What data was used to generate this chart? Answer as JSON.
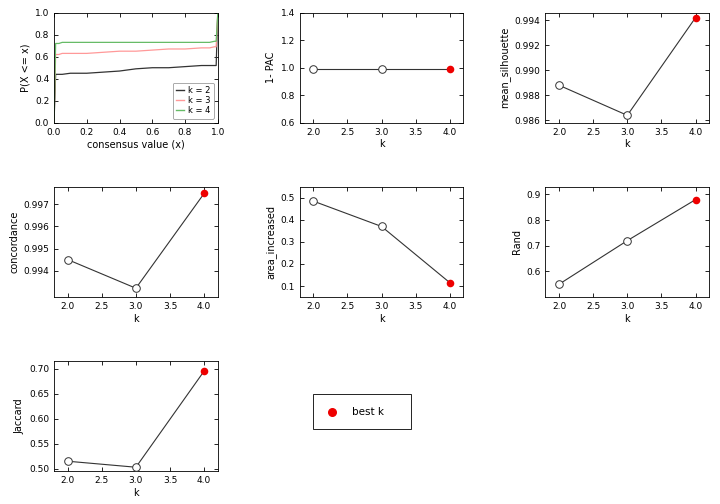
{
  "ecdf": {
    "k2": {
      "x": [
        0.0,
        0.01,
        0.02,
        0.03,
        0.05,
        0.1,
        0.2,
        0.3,
        0.4,
        0.5,
        0.6,
        0.7,
        0.8,
        0.9,
        0.95,
        0.98,
        0.99,
        1.0
      ],
      "y": [
        0.0,
        0.44,
        0.44,
        0.44,
        0.44,
        0.45,
        0.45,
        0.46,
        0.47,
        0.49,
        0.5,
        0.5,
        0.51,
        0.52,
        0.52,
        0.52,
        0.52,
        1.0
      ]
    },
    "k3": {
      "x": [
        0.0,
        0.01,
        0.02,
        0.03,
        0.05,
        0.1,
        0.2,
        0.3,
        0.4,
        0.5,
        0.6,
        0.7,
        0.8,
        0.9,
        0.95,
        0.98,
        0.99,
        1.0
      ],
      "y": [
        0.0,
        0.62,
        0.62,
        0.62,
        0.63,
        0.63,
        0.63,
        0.64,
        0.65,
        0.65,
        0.66,
        0.67,
        0.67,
        0.68,
        0.68,
        0.69,
        0.69,
        1.0
      ]
    },
    "k4": {
      "x": [
        0.0,
        0.01,
        0.02,
        0.03,
        0.05,
        0.1,
        0.2,
        0.3,
        0.4,
        0.5,
        0.6,
        0.7,
        0.8,
        0.9,
        0.95,
        0.98,
        0.99,
        1.0
      ],
      "y": [
        0.0,
        0.72,
        0.72,
        0.72,
        0.73,
        0.73,
        0.73,
        0.73,
        0.73,
        0.73,
        0.73,
        0.73,
        0.73,
        0.73,
        0.73,
        0.74,
        0.74,
        1.0
      ]
    },
    "colors": {
      "k2": "#333333",
      "k3": "#FF9999",
      "k4": "#66BB66"
    },
    "xlabel": "consensus value (x)",
    "ylabel": "P(X <= x)",
    "xlim": [
      0.0,
      1.0
    ],
    "ylim": [
      0.0,
      1.0
    ],
    "xticks": [
      0.0,
      0.2,
      0.4,
      0.6,
      0.8,
      1.0
    ],
    "yticks": [
      0.0,
      0.2,
      0.4,
      0.6,
      0.8,
      1.0
    ]
  },
  "pac": {
    "k": [
      2,
      3,
      4
    ],
    "values": [
      0.993,
      0.993,
      0.993
    ],
    "best_k": 4,
    "ylabel": "1- PAC",
    "ylim": [
      0.6,
      1.4
    ],
    "yticks": [
      0.6,
      0.8,
      1.0,
      1.2,
      1.4
    ]
  },
  "silhouette": {
    "k": [
      2,
      3,
      4
    ],
    "values": [
      0.9888,
      0.9864,
      0.9942
    ],
    "best_k": 4,
    "ylabel": "mean_silhouette",
    "ylim": [
      0.9858,
      0.9946
    ],
    "yticks": [
      0.986,
      0.988,
      0.99,
      0.992,
      0.994
    ]
  },
  "concordance": {
    "k": [
      2,
      3,
      4
    ],
    "values": [
      0.9945,
      0.9932,
      0.9975
    ],
    "best_k": 4,
    "ylabel": "concordance",
    "ylim": [
      0.9928,
      0.9978
    ],
    "yticks": [
      0.994,
      0.995,
      0.996,
      0.997
    ]
  },
  "area_increased": {
    "k": [
      2,
      3,
      4
    ],
    "values": [
      0.485,
      0.37,
      0.115
    ],
    "best_k": 4,
    "ylabel": "area_increased",
    "ylim": [
      0.05,
      0.55
    ],
    "yticks": [
      0.1,
      0.2,
      0.3,
      0.4,
      0.5
    ]
  },
  "rand": {
    "k": [
      2,
      3,
      4
    ],
    "values": [
      0.55,
      0.72,
      0.88
    ],
    "best_k": 4,
    "ylabel": "Rand",
    "ylim": [
      0.5,
      0.93
    ],
    "yticks": [
      0.6,
      0.7,
      0.8,
      0.9
    ]
  },
  "jaccard": {
    "k": [
      2,
      3,
      4
    ],
    "values": [
      0.515,
      0.503,
      0.695
    ],
    "best_k": 4,
    "ylabel": "Jaccard",
    "ylim": [
      0.495,
      0.715
    ],
    "yticks": [
      0.5,
      0.55,
      0.6,
      0.65,
      0.7
    ]
  },
  "line_color": "#333333",
  "open_dot_color": "#ffffff",
  "open_dot_edge": "#333333",
  "best_dot_color": "#EE0000",
  "dot_size": 30,
  "font_size": 7,
  "bg_color": "#FFFFFF"
}
